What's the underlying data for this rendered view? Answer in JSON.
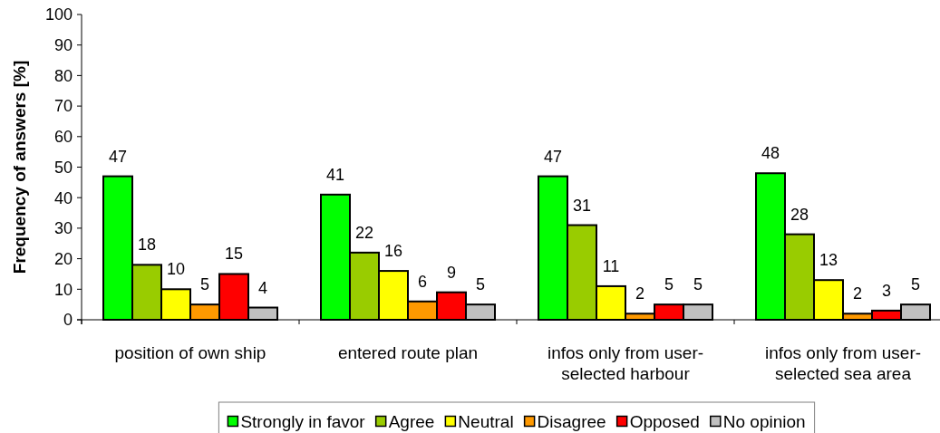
{
  "chart_data": {
    "type": "bar",
    "ylabel": "Frequency of answers [%]",
    "categories": [
      "position of own ship",
      "entered route plan",
      "infos only from user-selected harbour",
      "infos only from user-selected sea area"
    ],
    "series": [
      {
        "name": "Strongly in favor",
        "color": "#00ff00",
        "values": [
          47,
          41,
          47,
          48
        ]
      },
      {
        "name": "Agree",
        "color": "#99cc00",
        "values": [
          18,
          22,
          31,
          28
        ]
      },
      {
        "name": "Neutral",
        "color": "#ffff00",
        "values": [
          10,
          16,
          11,
          13
        ]
      },
      {
        "name": "Disagree",
        "color": "#ff9900",
        "values": [
          5,
          6,
          2,
          2
        ]
      },
      {
        "name": "Opposed",
        "color": "#ff0000",
        "values": [
          15,
          9,
          5,
          3
        ]
      },
      {
        "name": "No opinion",
        "color": "#c0c0c0",
        "values": [
          4,
          5,
          5,
          5
        ]
      }
    ],
    "ylim": [
      0,
      100
    ],
    "yticks": [
      0,
      10,
      20,
      30,
      40,
      50,
      60,
      70,
      80,
      90,
      100
    ],
    "data_labels": true,
    "legend": "bottom"
  }
}
